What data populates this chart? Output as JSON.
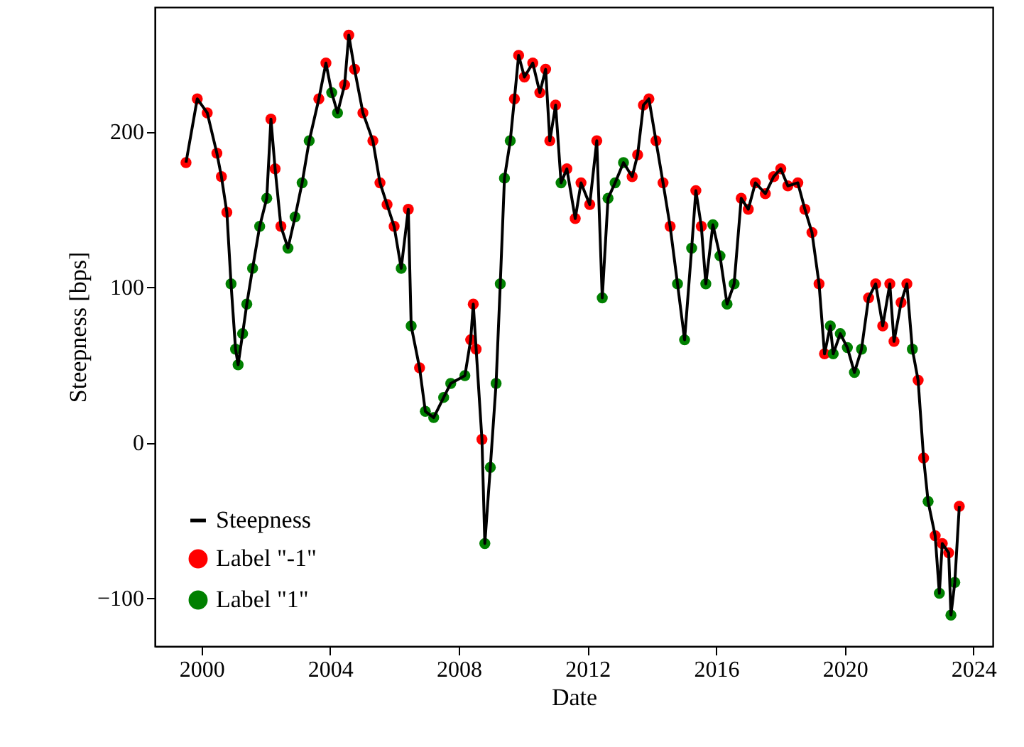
{
  "chart_data": {
    "type": "line",
    "xlabel": "Date",
    "ylabel": "Steepness [bps]",
    "xlim": [
      1998.55,
      2024.6
    ],
    "xticks": [
      2000,
      2004,
      2008,
      2012,
      2016,
      2020,
      2024
    ],
    "ylim": [
      -131,
      280
    ],
    "yticks": [
      -100,
      0,
      100,
      200
    ],
    "grid": false,
    "legend": "bottom left",
    "x": [
      1999.52,
      1999.87,
      2000.18,
      2000.48,
      2000.62,
      2000.79,
      2000.92,
      2001.06,
      2001.14,
      2001.28,
      2001.41,
      2001.59,
      2001.81,
      2002.03,
      2002.16,
      2002.29,
      2002.47,
      2002.69,
      2002.91,
      2003.13,
      2003.35,
      2003.65,
      2003.87,
      2004.05,
      2004.23,
      2004.45,
      2004.58,
      2004.76,
      2005.02,
      2005.33,
      2005.55,
      2005.77,
      2005.99,
      2006.21,
      2006.43,
      2006.52,
      2006.78,
      2006.96,
      2007.22,
      2007.53,
      2007.75,
      2008.19,
      2008.37,
      2008.45,
      2008.54,
      2008.72,
      2008.81,
      2008.98,
      2009.16,
      2009.29,
      2009.42,
      2009.6,
      2009.73,
      2009.86,
      2010.04,
      2010.3,
      2010.52,
      2010.7,
      2010.83,
      2011.01,
      2011.18,
      2011.36,
      2011.62,
      2011.8,
      2012.07,
      2012.29,
      2012.46,
      2012.64,
      2012.86,
      2013.12,
      2013.39,
      2013.56,
      2013.74,
      2013.91,
      2014.13,
      2014.35,
      2014.57,
      2014.8,
      2015.02,
      2015.24,
      2015.37,
      2015.54,
      2015.68,
      2015.9,
      2016.12,
      2016.34,
      2016.56,
      2016.78,
      2017.0,
      2017.22,
      2017.53,
      2017.79,
      2018.01,
      2018.23,
      2018.54,
      2018.76,
      2018.98,
      2019.2,
      2019.37,
      2019.55,
      2019.64,
      2019.86,
      2020.08,
      2020.3,
      2020.52,
      2020.74,
      2020.96,
      2021.18,
      2021.4,
      2021.53,
      2021.75,
      2021.93,
      2022.1,
      2022.28,
      2022.45,
      2022.59,
      2022.81,
      2022.94,
      2023.03,
      2023.23,
      2023.3,
      2023.42,
      2023.56
    ],
    "series": [
      {
        "name": "Steepness",
        "type": "line",
        "color": "#000000",
        "line_style": "solid",
        "values": [
          180,
          221,
          212,
          186,
          171,
          148,
          102,
          60,
          50,
          70,
          89,
          112,
          139,
          157,
          208,
          176,
          139,
          125,
          145,
          167,
          194,
          221,
          244,
          225,
          212,
          230,
          262,
          240,
          212,
          194,
          167,
          153,
          139,
          112,
          150,
          75,
          48,
          20,
          16,
          29,
          38,
          43,
          66,
          89,
          60,
          2,
          -65,
          -16,
          38,
          102,
          170,
          194,
          221,
          249,
          235,
          244,
          225,
          240,
          194,
          217,
          167,
          176,
          144,
          167,
          153,
          194,
          93,
          157,
          167,
          180,
          171,
          185,
          217,
          221,
          194,
          167,
          139,
          102,
          66,
          125,
          162,
          139,
          102,
          140,
          120,
          89,
          102,
          157,
          150,
          167,
          160,
          171,
          176,
          165,
          167,
          150,
          135,
          102,
          57,
          75,
          57,
          70,
          61,
          45,
          60,
          93,
          102,
          75,
          102,
          65,
          90,
          102,
          60,
          40,
          -10,
          -38,
          -60,
          -97,
          -65,
          -71,
          -111,
          -90,
          -41
        ]
      },
      {
        "name": "Label \"-1\"",
        "type": "scatter",
        "marker": "circle",
        "color": "#ff0000",
        "values": [
          180,
          221,
          212,
          186,
          171,
          148,
          null,
          null,
          null,
          null,
          null,
          null,
          null,
          null,
          208,
          176,
          139,
          null,
          null,
          null,
          null,
          221,
          244,
          null,
          null,
          230,
          262,
          240,
          212,
          194,
          167,
          153,
          139,
          null,
          150,
          null,
          48,
          null,
          null,
          null,
          null,
          null,
          66,
          89,
          60,
          2,
          null,
          null,
          null,
          null,
          null,
          null,
          221,
          249,
          235,
          244,
          225,
          240,
          194,
          217,
          null,
          176,
          144,
          167,
          153,
          194,
          null,
          null,
          null,
          null,
          171,
          185,
          217,
          221,
          194,
          167,
          139,
          null,
          null,
          null,
          162,
          139,
          null,
          null,
          null,
          null,
          null,
          157,
          150,
          167,
          160,
          171,
          176,
          165,
          167,
          150,
          135,
          102,
          57,
          null,
          null,
          null,
          null,
          null,
          null,
          93,
          102,
          75,
          102,
          65,
          90,
          102,
          null,
          40,
          -10,
          null,
          -60,
          null,
          -65,
          -71,
          null,
          null,
          -41
        ]
      },
      {
        "name": "Label \"1\"",
        "type": "scatter",
        "marker": "circle",
        "color": "#008000",
        "values": [
          null,
          null,
          null,
          null,
          null,
          null,
          102,
          60,
          50,
          70,
          89,
          112,
          139,
          157,
          null,
          null,
          null,
          125,
          145,
          167,
          194,
          null,
          null,
          225,
          212,
          null,
          null,
          null,
          null,
          null,
          null,
          null,
          null,
          112,
          null,
          75,
          null,
          20,
          16,
          29,
          38,
          43,
          null,
          null,
          null,
          null,
          -65,
          -16,
          38,
          102,
          170,
          194,
          null,
          null,
          null,
          null,
          null,
          null,
          null,
          null,
          167,
          null,
          null,
          null,
          null,
          null,
          93,
          157,
          167,
          180,
          null,
          null,
          null,
          null,
          null,
          null,
          null,
          102,
          66,
          125,
          null,
          null,
          102,
          140,
          120,
          89,
          102,
          null,
          null,
          null,
          null,
          null,
          null,
          null,
          null,
          null,
          null,
          null,
          null,
          75,
          57,
          70,
          61,
          45,
          60,
          null,
          null,
          null,
          null,
          null,
          null,
          null,
          60,
          null,
          null,
          -38,
          null,
          -97,
          null,
          null,
          -111,
          -90,
          null
        ]
      }
    ]
  }
}
